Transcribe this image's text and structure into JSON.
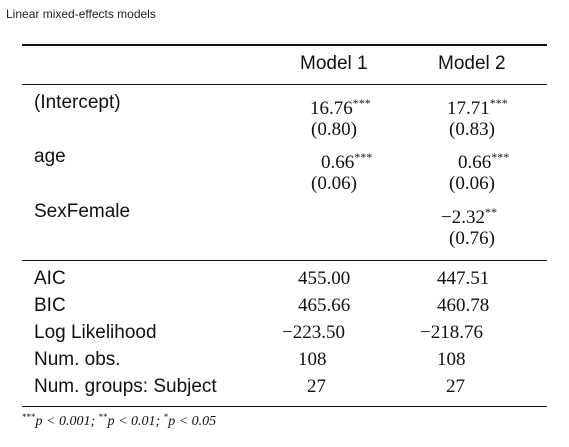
{
  "caption": "Linear mixed-effects models",
  "table": {
    "columns": [
      "Model 1",
      "Model 2"
    ],
    "coefficients": [
      {
        "label": "(Intercept)",
        "m1": {
          "est": "16.76",
          "stars": "***",
          "se": "(0.80)"
        },
        "m2": {
          "est": "17.71",
          "stars": "***",
          "se": "(0.83)"
        }
      },
      {
        "label": "age",
        "m1": {
          "est": "0.66",
          "stars": "***",
          "se": "(0.06)"
        },
        "m2": {
          "est": "0.66",
          "stars": "***",
          "se": "(0.06)"
        }
      },
      {
        "label": "SexFemale",
        "m1": {
          "est": "",
          "stars": "",
          "se": ""
        },
        "m2": {
          "est": "−2.32",
          "stars": "**",
          "se": "(0.76)"
        }
      }
    ],
    "gof": [
      {
        "label": "AIC",
        "m1": "455.00",
        "m2": "447.51"
      },
      {
        "label": "BIC",
        "m1": "465.66",
        "m2": "460.78"
      },
      {
        "label": "Log Likelihood",
        "m1": "−223.50",
        "m2": "−218.76"
      },
      {
        "label": "Num. obs.",
        "m1": "108",
        "m2": "108"
      },
      {
        "label": "Num. groups: Subject",
        "m1": "27",
        "m2": "27"
      }
    ]
  },
  "footnote": {
    "s1": "***",
    "t1": "p < 0.001; ",
    "s2": "**",
    "t2": "p < 0.01; ",
    "s3": "*",
    "t3": "p < 0.05"
  }
}
